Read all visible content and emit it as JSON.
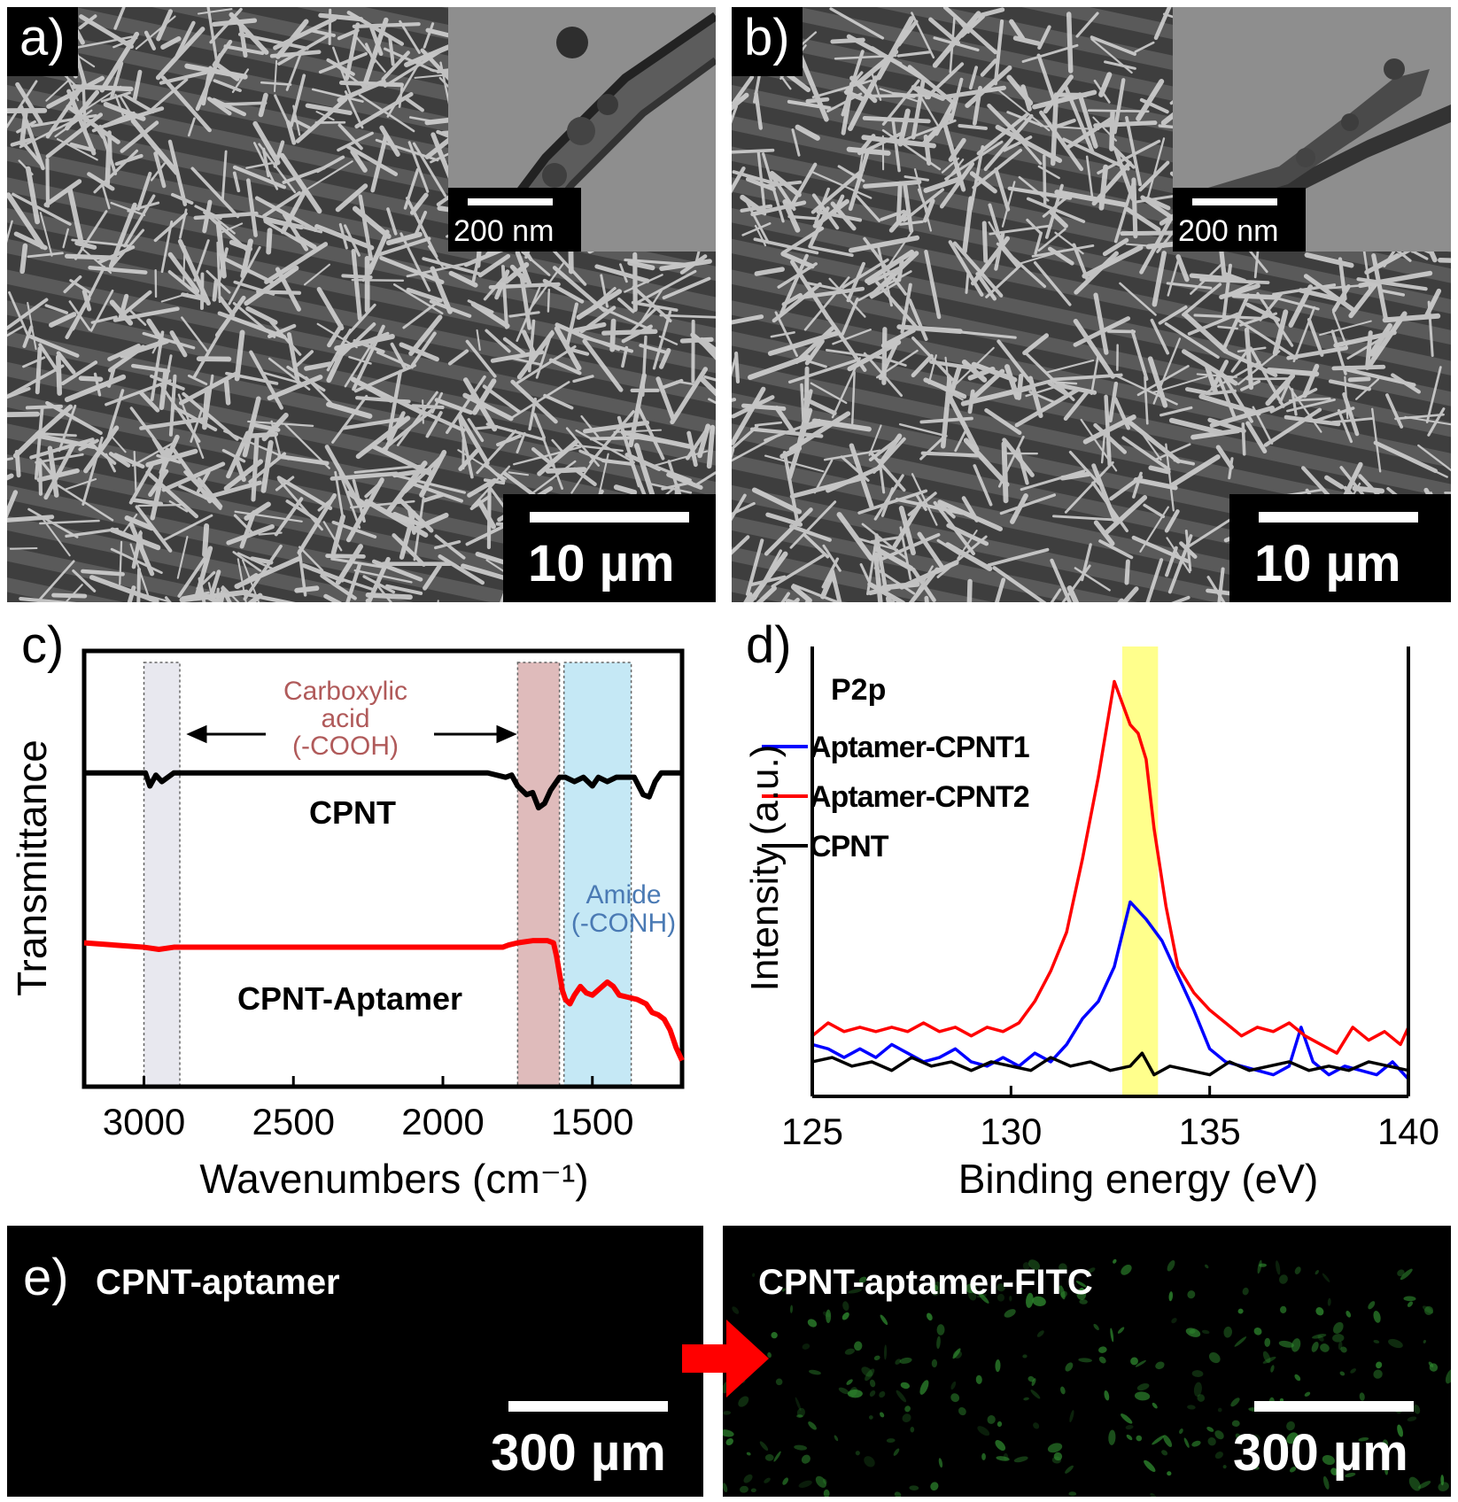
{
  "panel_a": {
    "label": "a)",
    "inset_scale": "200 nm",
    "scale": "10 µm"
  },
  "panel_b": {
    "label": "b)",
    "inset_scale": "200 nm",
    "scale": "10 µm"
  },
  "panel_c": {
    "label": "c)",
    "annotation_carboxylic": [
      "Carboxylic",
      "acid",
      "(-COOH)"
    ],
    "annotation_amide": [
      "Amide",
      "(-CONH)"
    ],
    "curve_label_top": "CPNT",
    "curve_label_bottom": "CPNT-Aptamer"
  },
  "panel_d": {
    "label": "d)",
    "inner_title": "P2p"
  },
  "panel_e": {
    "label": "e)",
    "left_title": "CPNT-aptamer",
    "right_title": "CPNT-aptamer-FITC",
    "left_scale": "300 µm",
    "right_scale": "300 µm"
  },
  "chart_data": [
    {
      "id": "c",
      "type": "line",
      "title": "",
      "xlabel": "Wavenumbers (cm⁻¹)",
      "ylabel": "Transmittance",
      "xlim": [
        3200,
        1200
      ],
      "ylim": [
        0,
        100
      ],
      "xticks": [
        3000,
        2500,
        2000,
        1500
      ],
      "highlight_bands": [
        {
          "from": 3000,
          "to": 2880,
          "color": "#e6e6ee"
        },
        {
          "from": 1750,
          "to": 1610,
          "color": "#dcb4b4"
        },
        {
          "from": 1595,
          "to": 1370,
          "color": "#bfe6f5"
        }
      ],
      "series": [
        {
          "name": "CPNT",
          "color": "#000000",
          "x": [
            3200,
            3100,
            3020,
            2995,
            2980,
            2960,
            2940,
            2900,
            2800,
            2600,
            2400,
            2200,
            2000,
            1850,
            1790,
            1770,
            1750,
            1720,
            1700,
            1680,
            1660,
            1640,
            1610,
            1590,
            1560,
            1530,
            1500,
            1480,
            1450,
            1420,
            1390,
            1360,
            1330,
            1310,
            1290,
            1270,
            1250,
            1200
          ],
          "y": [
            72,
            72,
            72,
            72,
            69,
            71.5,
            70,
            72,
            72,
            72,
            72,
            72,
            72,
            72,
            71,
            71.5,
            69,
            67,
            67.5,
            64,
            65,
            68,
            71,
            71,
            70,
            71,
            69,
            71,
            70,
            71,
            71,
            71,
            67,
            66.5,
            70,
            72,
            72,
            72
          ]
        },
        {
          "name": "CPNT-Aptamer",
          "color": "#ff0000",
          "x": [
            3200,
            3100,
            3000,
            2950,
            2900,
            2700,
            2500,
            2300,
            2100,
            2000,
            1850,
            1800,
            1780,
            1750,
            1700,
            1650,
            1630,
            1620,
            1610,
            1600,
            1590,
            1575,
            1560,
            1540,
            1520,
            1500,
            1475,
            1450,
            1430,
            1410,
            1380,
            1350,
            1320,
            1300,
            1280,
            1260,
            1240,
            1220,
            1200
          ],
          "y": [
            33,
            32.5,
            32,
            31.5,
            32,
            32,
            32,
            32,
            32,
            32,
            32,
            32,
            32.5,
            33,
            33.5,
            33.5,
            33,
            30,
            26,
            22,
            20,
            19,
            21,
            23,
            21.5,
            21,
            22.5,
            24,
            23,
            21,
            20.5,
            20,
            19,
            17,
            16.5,
            15.5,
            13,
            9,
            6
          ]
        }
      ]
    },
    {
      "id": "d",
      "type": "line",
      "title": "P2p",
      "xlabel": "Binding energy (eV)",
      "ylabel": "Intensity (a.u.)",
      "xlim": [
        125,
        140
      ],
      "ylim": [
        0,
        100
      ],
      "xticks": [
        125,
        130,
        135,
        140
      ],
      "highlight_bands": [
        {
          "from": 132.8,
          "to": 133.7,
          "color": "#ffff80"
        }
      ],
      "legend": [
        "Aptamer-CPNT1",
        "Aptamer-CPNT2",
        "CPNT"
      ],
      "legend_position": "top-left",
      "series": [
        {
          "name": "Aptamer-CPNT1",
          "color": "#0000ff",
          "x": [
            125,
            125.4,
            125.8,
            126.2,
            126.6,
            127,
            127.4,
            127.8,
            128.2,
            128.6,
            129,
            129.4,
            129.8,
            130.2,
            130.6,
            131,
            131.4,
            131.8,
            132.2,
            132.6,
            133,
            133.2,
            133.4,
            133.8,
            134.2,
            134.6,
            135,
            135.4,
            135.8,
            136.2,
            136.6,
            137,
            137.3,
            137.6,
            138,
            138.4,
            138.8,
            139.2,
            139.6,
            140
          ],
          "y": [
            12,
            11,
            9,
            11,
            9,
            12,
            10,
            8,
            9,
            11,
            8,
            7,
            9,
            7,
            10,
            8,
            12,
            18,
            22,
            30,
            45,
            43,
            41,
            36,
            28,
            20,
            11,
            8,
            7,
            6,
            5,
            7,
            16,
            8,
            5,
            7,
            6,
            5,
            8,
            4
          ]
        },
        {
          "name": "Aptamer-CPNT2",
          "color": "#ff0000",
          "x": [
            125,
            125.4,
            125.8,
            126.2,
            126.6,
            127,
            127.4,
            127.8,
            128.2,
            128.6,
            129,
            129.4,
            129.8,
            130.2,
            130.6,
            131,
            131.4,
            131.8,
            132.2,
            132.6,
            133,
            133.2,
            133.4,
            133.6,
            133.9,
            134.2,
            134.6,
            135,
            135.4,
            135.8,
            136.2,
            136.6,
            137,
            137.4,
            137.8,
            138.2,
            138.6,
            139,
            139.4,
            139.8,
            140
          ],
          "y": [
            14,
            17,
            15,
            16,
            15,
            16,
            15,
            17,
            15,
            16,
            14,
            16,
            15,
            17,
            22,
            29,
            38,
            55,
            74,
            96,
            86,
            84,
            78,
            62,
            44,
            30,
            24,
            20,
            17,
            14,
            16,
            15,
            17,
            14,
            12,
            10,
            16,
            13,
            15,
            12,
            16
          ]
        },
        {
          "name": "CPNT",
          "color": "#000000",
          "x": [
            125,
            125.5,
            126,
            126.5,
            127,
            127.5,
            128,
            128.5,
            129,
            129.5,
            130,
            130.5,
            131,
            131.5,
            132,
            132.5,
            133,
            133.3,
            133.6,
            134,
            134.5,
            135,
            135.5,
            136,
            136.5,
            137,
            137.5,
            138,
            138.5,
            139,
            139.5,
            140
          ],
          "y": [
            8,
            9,
            7,
            8,
            6,
            9,
            7,
            8,
            6,
            8,
            7,
            6,
            9,
            7,
            8,
            6,
            7,
            10,
            5,
            7,
            6,
            5,
            8,
            6,
            7,
            8,
            6,
            7,
            6,
            8,
            7,
            6
          ]
        }
      ]
    }
  ]
}
